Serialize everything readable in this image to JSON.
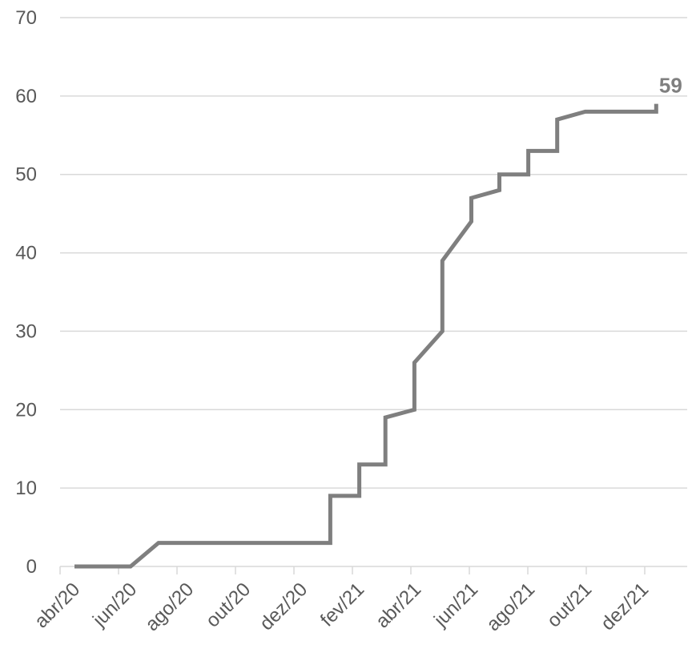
{
  "chart_data": {
    "type": "line",
    "title": "",
    "xlabel": "",
    "ylabel": "",
    "ylim": [
      0,
      70
    ],
    "y_ticks": [
      0,
      10,
      20,
      30,
      40,
      50,
      60,
      70
    ],
    "x_ticks": [
      "abr/20",
      "jun/20",
      "ago/20",
      "out/20",
      "dez/20",
      "fev/21",
      "abr/21",
      "jun/21",
      "ago/21",
      "out/21",
      "dez/21"
    ],
    "grid": true,
    "legend": "none",
    "series_color": "#7f7f7f",
    "end_label": "59",
    "series": [
      {
        "points": [
          [
            "2020-04-01",
            0
          ],
          [
            "2020-05-31",
            0
          ],
          [
            "2020-06-30",
            3
          ],
          [
            "2020-12-31",
            3
          ],
          [
            "2020-12-31",
            9
          ],
          [
            "2021-01-31",
            9
          ],
          [
            "2021-01-31",
            13
          ],
          [
            "2021-02-28",
            13
          ],
          [
            "2021-02-28",
            19
          ],
          [
            "2021-03-31",
            20
          ],
          [
            "2021-03-31",
            26
          ],
          [
            "2021-04-30",
            30
          ],
          [
            "2021-04-30",
            39
          ],
          [
            "2021-05-31",
            44
          ],
          [
            "2021-05-31",
            47
          ],
          [
            "2021-06-30",
            48
          ],
          [
            "2021-06-30",
            50
          ],
          [
            "2021-07-31",
            50
          ],
          [
            "2021-07-31",
            53
          ],
          [
            "2021-08-31",
            53
          ],
          [
            "2021-08-31",
            57
          ],
          [
            "2021-09-30",
            58
          ],
          [
            "2021-12-15",
            58
          ],
          [
            "2021-12-15",
            59
          ]
        ]
      }
    ]
  }
}
